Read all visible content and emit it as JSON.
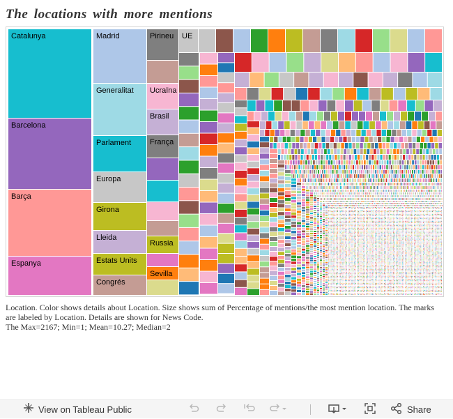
{
  "title": "The locations with more mentions",
  "caption": [
    "Location.  Color shows details about Location.  Size shows sum of Percentage of mentions/the most mention location.  The marks are labeled by Location.  Details are shown for News Code.",
    "The Max=2167; Min=1; Mean=10.27; Median=2"
  ],
  "toolbar": {
    "view_label": "View on Tableau Public",
    "share_label": "Share",
    "icons": [
      "tableau-logo-icon",
      "undo-icon",
      "redo-icon",
      "revert-icon",
      "refresh-icon",
      "pause-dropdown-icon",
      "download-icon",
      "fullscreen-icon",
      "share-icon"
    ]
  },
  "palette": [
    "#17becf",
    "#9467bd",
    "#ff9896",
    "#e377c2",
    "#aec7e8",
    "#7f7f7f",
    "#c49c94",
    "#bcbd22",
    "#c5b0d5",
    "#f7b6d2",
    "#2ca02c",
    "#ff7f0e",
    "#98df8a",
    "#ffbb78",
    "#9edae5",
    "#dbdb8d",
    "#8c564b",
    "#d62728",
    "#1f77b4",
    "#c7c7c7"
  ],
  "chart_data": {
    "type": "treemap",
    "title": "The locations with more mentions",
    "measure": "Percentage of mentions/the most mention location",
    "color_by": "Location",
    "labeled_marks": [
      {
        "label": "Catalunya",
        "color": "#17becf"
      },
      {
        "label": "Barcelona",
        "color": "#9467bd"
      },
      {
        "label": "Barça",
        "color": "#ff9896"
      },
      {
        "label": "Espanya",
        "color": "#e377c2"
      },
      {
        "label": "Madrid",
        "color": "#aec7e8"
      },
      {
        "label": "Generalitat",
        "color": "#9edae5"
      },
      {
        "label": "Parlament",
        "color": "#17becf"
      },
      {
        "label": "Europa",
        "color": "#c7c7c7"
      },
      {
        "label": "Girona",
        "color": "#bcbd22"
      },
      {
        "label": "Lleida",
        "color": "#c5b0d5"
      },
      {
        "label": "Estats Units",
        "color": "#bcbd22"
      },
      {
        "label": "Congrés",
        "color": "#c49c94"
      },
      {
        "label": "Pirineu",
        "color": "#7f7f7f"
      },
      {
        "label": "Ucraïna",
        "color": "#f7b6d2"
      },
      {
        "label": "Brasil",
        "color": "#c5b0d5"
      },
      {
        "label": "França",
        "color": "#7f7f7f"
      },
      {
        "label": "Russia",
        "color": "#bcbd22"
      },
      {
        "label": "Sevilla",
        "color": "#ff7f0e"
      },
      {
        "label": "UE",
        "color": "#c7c7c7"
      }
    ],
    "stats": {
      "max": 2167,
      "min": 1,
      "mean": 10.27,
      "median": 2
    }
  }
}
